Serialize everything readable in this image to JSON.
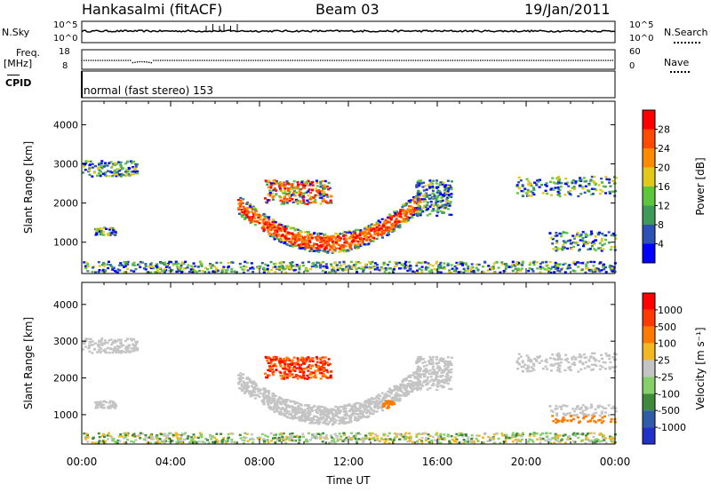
{
  "header": {
    "station": "Hankasalmi (fitACF)",
    "beam": "Beam 03",
    "date": "19/Jan/2011"
  },
  "top_panels": {
    "nsky_label": "N.Sky",
    "nsky_ticks": [
      "10^5",
      "10^0"
    ],
    "nsearch_label": "N.Search",
    "nsearch_ticks": [
      "10^5",
      "10^0"
    ],
    "freq_label": "Freq.",
    "freq_unit": "[MHz]",
    "freq_ticks": [
      "18",
      "8"
    ],
    "nave_label": "Nave",
    "nave_ticks": [
      "60",
      "0"
    ],
    "cpid_label": "CPID",
    "cpid_text": "normal (fast stereo) 153"
  },
  "chart_data": [
    {
      "type": "heatmap",
      "panel": "power",
      "xlabel": "",
      "ylabel": "Slant Range [km]",
      "xlim": [
        0,
        24
      ],
      "ylim": [
        200,
        4600
      ],
      "y_ticks": [
        1000,
        2000,
        3000,
        4000
      ],
      "colorbar_label": "Power [dB]",
      "colorbar_ticks": [
        "4",
        "8",
        "12",
        "16",
        "20",
        "24",
        "28"
      ],
      "colorbar_colors": [
        "#0000ff",
        "#2d52b5",
        "#3f9a5a",
        "#5ec63c",
        "#e2c81b",
        "#ff8a00",
        "#ff4a00",
        "#ff0000"
      ]
    },
    {
      "type": "heatmap",
      "panel": "velocity",
      "xlabel": "Time UT",
      "ylabel": "Slant Range [km]",
      "xlim": [
        0,
        24
      ],
      "ylim": [
        200,
        4600
      ],
      "y_ticks": [
        1000,
        2000,
        3000,
        4000
      ],
      "x_tick_labels": [
        "00:00",
        "04:00",
        "08:00",
        "12:00",
        "16:00",
        "20:00",
        "00:00"
      ],
      "colorbar_label": "Velocity [m s⁻¹]",
      "colorbar_ticks": [
        "1000",
        "500",
        "100",
        "25",
        "-25",
        "-100",
        "-500",
        "-1000"
      ],
      "colorbar_colors": [
        "#2232c8",
        "#2f5ca8",
        "#3f8a3a",
        "#86d06a",
        "#c4c4c4",
        "#f2b824",
        "#ff7a00",
        "#ff3a00",
        "#ff0000"
      ]
    }
  ]
}
